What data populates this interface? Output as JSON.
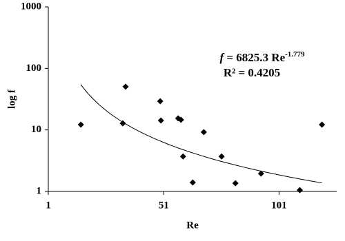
{
  "chart_data": {
    "type": "scatter",
    "x_label": "Re",
    "y_label": "log f",
    "x": [
      15.1,
      33.3,
      34.5,
      49.5,
      49.8,
      57.3,
      58.5,
      59.4,
      63.6,
      68.4,
      76.1,
      82.1,
      93.2,
      110,
      119.6
    ],
    "values": [
      12.2,
      12.8,
      50.4,
      29.3,
      14.2,
      15.4,
      14.6,
      3.7,
      1.4,
      9.2,
      3.7,
      1.36,
      1.95,
      1.05,
      12.2
    ],
    "color": "#000000",
    "xlim": [
      1,
      126
    ],
    "xticks": [
      1,
      51,
      101
    ],
    "ylim": [
      1,
      1000
    ],
    "yticks": [
      1,
      10,
      100,
      1000
    ],
    "y_scale": "log",
    "grid": false,
    "trendline": {
      "type": "power",
      "lhs": "f",
      "equals": "=",
      "coefficient": 6825.3,
      "variable": "Re",
      "exponent": -1.779,
      "r_squared": {
        "value": 0.4205,
        "label": "R² = 0.4205"
      },
      "color": "#000000"
    }
  }
}
